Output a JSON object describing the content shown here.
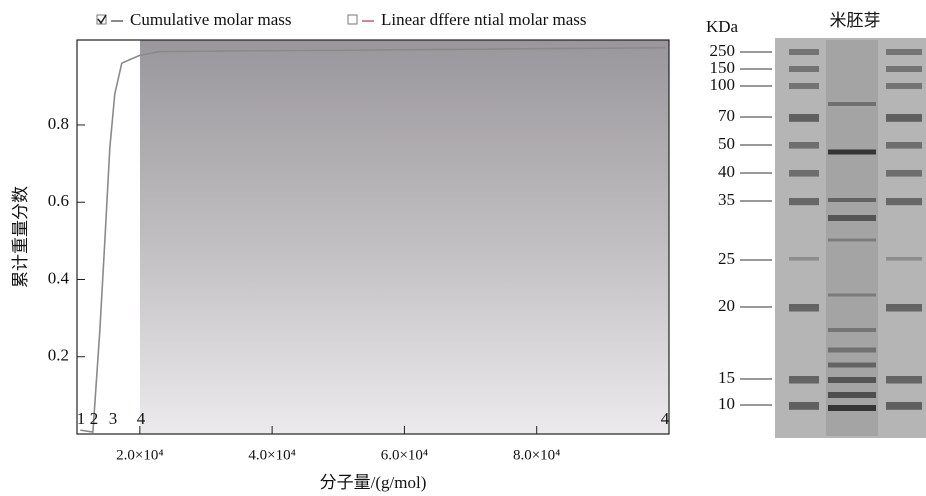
{
  "chart_data": {
    "type": "line",
    "xlabel": "分子量/(g/mol)",
    "ylabel": "累计重量分数",
    "x": [
      11000,
      12906,
      13960,
      14710,
      15460,
      16210,
      17270,
      19970,
      22980,
      99520
    ],
    "series": [
      {
        "name": "Cumulative molar mass",
        "color": "#8a8a8a",
        "values": [
          0.01,
          0.005,
          0.27,
          0.5,
          0.74,
          0.88,
          0.96,
          0.98,
          0.99,
          1.0
        ]
      },
      {
        "name": "Linear dffere ntial molar mass",
        "color": "#c98a8a",
        "values": [
          null,
          null,
          null,
          null,
          null,
          null,
          null,
          null,
          null,
          null
        ]
      }
    ],
    "xlim": [
      10500,
      100000
    ],
    "ylim": [
      0,
      1.02
    ],
    "xticks": [
      {
        "value": 20000,
        "label": "2.0×10⁴"
      },
      {
        "value": 40000,
        "label": "4.0×10⁴"
      },
      {
        "value": 60000,
        "label": "6.0×10⁴"
      },
      {
        "value": 80000,
        "label": "8.0×10⁴"
      }
    ],
    "yticks": [
      0.2,
      0.4,
      0.6,
      0.8
    ],
    "annotations": [
      "1",
      "2",
      "3",
      "4",
      "4"
    ]
  },
  "gel": {
    "title": "米胚芽",
    "unit": "KDa",
    "markers": [
      250,
      150,
      100,
      70,
      50,
      40,
      35,
      25,
      20,
      15,
      10
    ]
  }
}
